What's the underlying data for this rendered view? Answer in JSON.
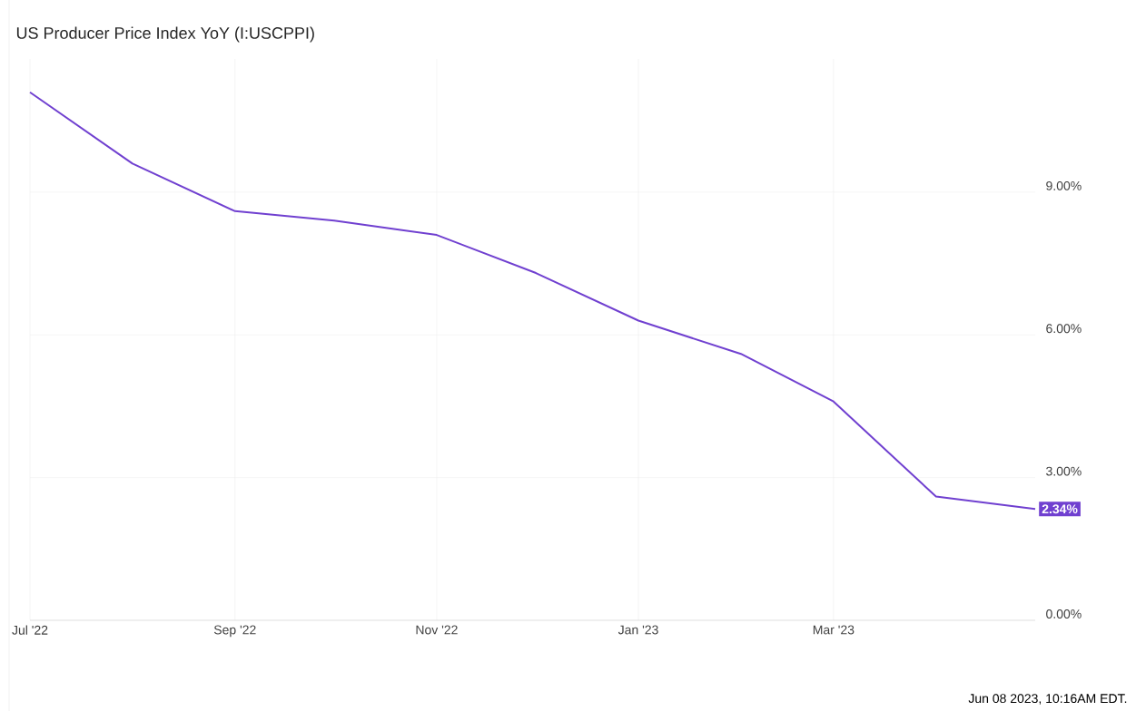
{
  "chart_data": {
    "type": "line",
    "title": "US Producer Price Index YoY (I:USCPPI)",
    "x": [
      "2022-07-01",
      "2022-08-01",
      "2022-09-01",
      "2022-10-01",
      "2022-11-01",
      "2022-12-01",
      "2023-01-01",
      "2023-02-01",
      "2023-03-01",
      "2023-04-01",
      "2023-05-01"
    ],
    "series": [
      {
        "color": "#7040d0",
        "values": [
          11.1,
          9.6,
          8.6,
          8.4,
          8.1,
          7.3,
          6.3,
          5.6,
          4.6,
          2.6,
          2.34
        ],
        "value_labels": [
          null,
          null,
          null,
          null,
          null,
          null,
          null,
          null,
          null,
          null,
          "2.34%"
        ]
      }
    ],
    "xlim": [
      "2022-07-01",
      "2023-05-01"
    ],
    "ylim": [
      0,
      11.8
    ],
    "xticks": [
      {
        "value": "2022-07-01",
        "label": "Jul '22"
      },
      {
        "value": "2022-09-01",
        "label": "Sep '22"
      },
      {
        "value": "2022-11-01",
        "label": "Nov '22"
      },
      {
        "value": "2023-01-01",
        "label": "Jan '23"
      },
      {
        "value": "2023-03-01",
        "label": "Mar '23"
      }
    ],
    "yticks": [
      {
        "value": 0,
        "label": "0.00%"
      },
      {
        "value": 3,
        "label": "3.00%"
      },
      {
        "value": 6,
        "label": "6.00%"
      },
      {
        "value": 9,
        "label": "9.00%"
      }
    ],
    "grid": true,
    "annotations": [
      "Jun 08 2023, 10:16AM EDT."
    ]
  }
}
